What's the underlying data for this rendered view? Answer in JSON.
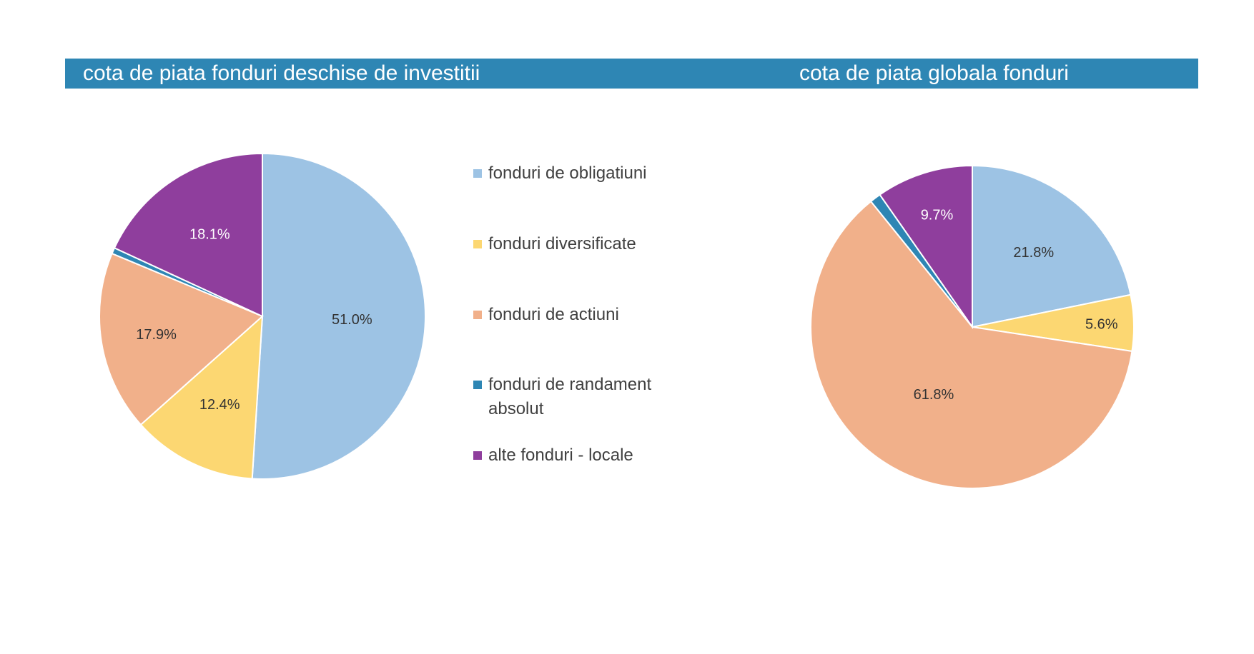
{
  "colors": {
    "banner": "#2e86b4",
    "series": [
      "#9dc3e4",
      "#fcd772",
      "#f1b08a",
      "#2e86b4",
      "#8f3e9d"
    ]
  },
  "legend": [
    {
      "label": "fonduri de obligatiuni",
      "color": "#9dc3e4"
    },
    {
      "label": "fonduri diversificate",
      "color": "#fcd772"
    },
    {
      "label": "fonduri de actiuni",
      "color": "#f1b08a"
    },
    {
      "label": "fonduri de randament absolut",
      "color": "#2e86b4"
    },
    {
      "label": "alte fonduri - locale",
      "color": "#8f3e9d"
    }
  ],
  "chart_data": [
    {
      "type": "pie",
      "title": "cota de piata fonduri deschise de investitii",
      "categories": [
        "fonduri de obligatiuni",
        "fonduri diversificate",
        "fonduri de actiuni",
        "fonduri de randament absolut",
        "alte fonduri - locale"
      ],
      "values": [
        51.0,
        12.4,
        17.9,
        0.6,
        18.1
      ],
      "labels": [
        "51.0%",
        "12.4%",
        "17.9%",
        "",
        "18.1%"
      ],
      "colors": [
        "#9dc3e4",
        "#fcd772",
        "#f1b08a",
        "#2e86b4",
        "#8f3e9d"
      ],
      "legend_position": "right"
    },
    {
      "type": "pie",
      "title": "cota de piata globala fonduri",
      "categories": [
        "fonduri de obligatiuni",
        "fonduri diversificate",
        "fonduri de actiuni",
        "fonduri de randament absolut",
        "alte fonduri - locale"
      ],
      "values": [
        21.8,
        5.6,
        61.8,
        1.1,
        9.7
      ],
      "labels": [
        "21.8%",
        "5.6%",
        "61.8%",
        "",
        "9.7%"
      ],
      "colors": [
        "#9dc3e4",
        "#fcd772",
        "#f1b08a",
        "#2e86b4",
        "#8f3e9d"
      ]
    }
  ]
}
